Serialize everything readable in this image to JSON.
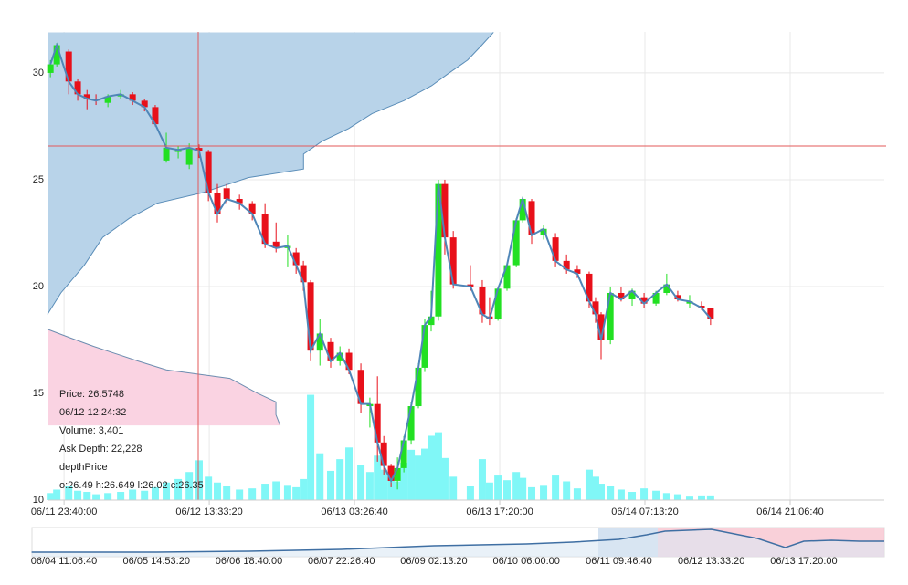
{
  "chart_data": {
    "type": "candlestick",
    "xlim": [
      -5.7,
      282.4
    ],
    "xticks": [
      {
        "value": 0,
        "label": "06/11 23:40:00"
      },
      {
        "value": 50,
        "label": "06/12 13:33:20"
      },
      {
        "value": 100,
        "label": "06/13 03:26:40"
      },
      {
        "value": 150,
        "label": "06/13 17:20:00"
      },
      {
        "value": 200,
        "label": "06/14 07:13:20"
      },
      {
        "value": 250,
        "label": "06/14 21:06:40"
      }
    ],
    "ylim": [
      10,
      31.92
    ],
    "yticks": [
      10,
      15,
      20,
      25,
      30
    ],
    "grid": true,
    "up_color": "#22e022",
    "down_color": "#e8101a",
    "line_color": "#4f86b8",
    "volume_color": "#80f7f7",
    "volume_lim": [
      0,
      40000
    ],
    "x": [
      -4.7,
      -2.5,
      1.6,
      4.7,
      7.9,
      11.0,
      15.1,
      19.5,
      23.6,
      27.7,
      31.4,
      35.2,
      39.3,
      43.1,
      46.5,
      49.7,
      52.8,
      56.0,
      60.4,
      64.8,
      69.2,
      73.0,
      77.0,
      79.9,
      82.4,
      84.9,
      88.1,
      91.8,
      95.0,
      98.1,
      102.2,
      105.3,
      107.9,
      110.1,
      112.6,
      114.8,
      117.0,
      119.5,
      122.0,
      124.2,
      126.4,
      128.9,
      131.1,
      134.0,
      139.9,
      144.0,
      146.5,
      149.4,
      152.5,
      155.7,
      157.9,
      161.0,
      165.1,
      169.2,
      173.0,
      176.7,
      180.8,
      183.0,
      184.9,
      188.1,
      191.8,
      195.6,
      199.7,
      203.8,
      207.5,
      211.3,
      215.4,
      219.5,
      222.6
    ],
    "ohlc": [
      [
        30.0,
        30.6,
        29.8,
        30.4
      ],
      [
        30.4,
        31.4,
        30.3,
        31.3
      ],
      [
        31.0,
        31.1,
        29.0,
        29.6
      ],
      [
        29.6,
        29.7,
        28.7,
        29.0
      ],
      [
        29.0,
        29.2,
        28.3,
        28.8
      ],
      [
        28.8,
        29.0,
        28.5,
        28.7
      ],
      [
        28.6,
        29.0,
        28.4,
        28.9
      ],
      [
        28.9,
        29.2,
        28.8,
        29.0
      ],
      [
        29.0,
        29.1,
        28.5,
        28.7
      ],
      [
        28.7,
        28.8,
        28.2,
        28.4
      ],
      [
        28.4,
        28.5,
        27.5,
        27.6
      ],
      [
        25.9,
        27.2,
        25.8,
        26.5
      ],
      [
        26.3,
        26.6,
        26.0,
        26.4
      ],
      [
        25.7,
        26.7,
        25.5,
        26.5
      ],
      [
        26.49,
        26.649,
        26.02,
        26.35
      ],
      [
        26.3,
        26.4,
        24.0,
        24.4
      ],
      [
        24.4,
        24.8,
        23.0,
        23.4
      ],
      [
        24.6,
        24.8,
        23.9,
        24.1
      ],
      [
        24.1,
        24.3,
        23.6,
        23.9
      ],
      [
        23.9,
        24.0,
        23.1,
        23.4
      ],
      [
        23.4,
        23.9,
        21.8,
        22.0
      ],
      [
        22.1,
        23.0,
        21.6,
        21.8
      ],
      [
        21.8,
        22.4,
        20.9,
        21.9
      ],
      [
        21.6,
        21.8,
        20.6,
        21.0
      ],
      [
        21.0,
        21.2,
        19.8,
        20.2
      ],
      [
        20.2,
        20.3,
        16.5,
        17.0
      ],
      [
        17.0,
        18.5,
        16.3,
        17.8
      ],
      [
        17.4,
        17.6,
        16.2,
        16.5
      ],
      [
        16.5,
        17.2,
        16.3,
        16.9
      ],
      [
        16.9,
        17.1,
        15.9,
        16.1
      ],
      [
        16.1,
        16.4,
        14.1,
        14.5
      ],
      [
        14.4,
        14.8,
        13.4,
        14.5
      ],
      [
        14.5,
        15.8,
        11.8,
        12.7
      ],
      [
        12.7,
        13.0,
        11.2,
        11.6
      ],
      [
        11.6,
        11.7,
        10.6,
        10.9
      ],
      [
        10.9,
        12.0,
        10.5,
        11.5
      ],
      [
        11.5,
        13.0,
        11.3,
        12.8
      ],
      [
        12.8,
        14.6,
        12.6,
        14.4
      ],
      [
        14.4,
        16.4,
        14.3,
        16.2
      ],
      [
        16.2,
        18.5,
        16.0,
        18.2
      ],
      [
        18.2,
        19.8,
        17.9,
        18.6
      ],
      [
        18.6,
        25.0,
        18.4,
        24.8
      ],
      [
        24.8,
        25.0,
        21.5,
        22.3
      ],
      [
        22.3,
        22.6,
        19.9,
        20.1
      ],
      [
        20.1,
        21.0,
        19.8,
        20.0
      ],
      [
        20.0,
        20.3,
        18.3,
        18.7
      ],
      [
        18.6,
        19.5,
        18.2,
        18.5
      ],
      [
        18.5,
        20.0,
        18.4,
        19.9
      ],
      [
        19.9,
        21.1,
        19.8,
        21.0
      ],
      [
        21.0,
        23.2,
        20.9,
        23.1
      ],
      [
        23.1,
        24.2,
        23.0,
        24.1
      ],
      [
        24.0,
        24.1,
        22.0,
        22.4
      ],
      [
        22.4,
        22.9,
        22.2,
        22.7
      ],
      [
        22.3,
        22.5,
        20.9,
        21.2
      ],
      [
        21.2,
        21.5,
        20.6,
        20.8
      ],
      [
        20.8,
        21.0,
        20.4,
        20.6
      ],
      [
        20.6,
        20.7,
        19.0,
        19.3
      ],
      [
        19.3,
        19.5,
        18.3,
        18.7
      ],
      [
        18.7,
        18.8,
        16.6,
        17.5
      ],
      [
        17.5,
        20.0,
        17.3,
        19.7
      ],
      [
        19.7,
        20.0,
        19.3,
        19.4
      ],
      [
        19.4,
        19.9,
        19.1,
        19.8
      ],
      [
        19.5,
        19.7,
        19.0,
        19.2
      ],
      [
        19.2,
        19.8,
        19.1,
        19.7
      ],
      [
        19.7,
        20.6,
        19.6,
        20.1
      ],
      [
        19.6,
        19.8,
        19.3,
        19.4
      ],
      [
        19.2,
        19.6,
        19.0,
        19.3
      ],
      [
        19.1,
        19.3,
        18.9,
        19.0
      ],
      [
        19.0,
        19.0,
        18.2,
        18.5
      ]
    ],
    "volume": [
      600,
      900,
      1200,
      800,
      700,
      500,
      600,
      700,
      900,
      800,
      1100,
      1500,
      1800,
      2400,
      3401,
      2000,
      1500,
      1200,
      900,
      1000,
      1400,
      1600,
      1300,
      1100,
      1800,
      9000,
      4000,
      2500,
      3500,
      4500,
      3000,
      2400,
      3800,
      2600,
      2000,
      1600,
      3200,
      4300,
      3800,
      4400,
      5500,
      5800,
      3600,
      2000,
      1200,
      3500,
      1500,
      2100,
      1700,
      2400,
      1900,
      1100,
      1300,
      2100,
      1600,
      1000,
      2600,
      2000,
      1400,
      1200,
      900,
      700,
      1000,
      800,
      600,
      500,
      300,
      400,
      400
    ],
    "depth_lim": [
      0,
      100000
    ],
    "bid_depth": {
      "color": "#b8d3e9",
      "prices": [
        31.9,
        31.3,
        30.6,
        30.0,
        29.4,
        28.7,
        28.1,
        27.4,
        26.8,
        26.2,
        25.5,
        25.1,
        24.4,
        23.9,
        23.2,
        22.3,
        21.0,
        19.7,
        18.7
      ],
      "depths": [
        53300,
        51900,
        50200,
        48000,
        45900,
        42600,
        38800,
        36000,
        32800,
        30600,
        30600,
        24000,
        18600,
        13100,
        9800,
        6600,
        4400,
        1600,
        0
      ]
    },
    "ask_depth": {
      "color": "#fad3e2",
      "prices": [
        18.0,
        17.6,
        17.2,
        16.5,
        16.1,
        15.7,
        15.0,
        14.6,
        14.0,
        13.5
      ],
      "depths": [
        0,
        2700,
        5500,
        10900,
        14200,
        21800,
        25100,
        27300,
        27300,
        27800
      ]
    },
    "tooltip": [
      "Price: 26.5748",
      "06/12 12:24:32",
      "Volume: 3,401",
      "Ask Depth: 22,228",
      "depthPrice",
      "o:26.49 h:26.649 l:26.02 c:26.35"
    ],
    "navigator": {
      "xlim": [
        -0.346,
        8.87
      ],
      "ylim": [
        0,
        32
      ],
      "xticks": [
        {
          "value": 0,
          "label": "06/04 11:06:40"
        },
        {
          "value": 1,
          "label": "06/05 14:53:20"
        },
        {
          "value": 2,
          "label": "06/06 18:40:00"
        },
        {
          "value": 3,
          "label": "06/07 22:26:40"
        },
        {
          "value": 4,
          "label": "06/09 02:13:20"
        },
        {
          "value": 5,
          "label": "06/10 06:00:00"
        },
        {
          "value": 6,
          "label": "06/11 09:46:40"
        },
        {
          "value": 7,
          "label": "06/12 13:33:20"
        },
        {
          "value": 8,
          "label": "06/13 17:20:00"
        }
      ],
      "x": [
        -0.35,
        0,
        1,
        2,
        3,
        3.5,
        4,
        4.5,
        5,
        5.5,
        6,
        6.3,
        6.5,
        7,
        7.3,
        7.5,
        7.8,
        8,
        8.3,
        8.6,
        8.87
      ],
      "values": [
        5,
        5,
        5,
        6,
        8,
        10,
        12,
        13,
        14,
        16,
        19,
        24,
        28,
        30,
        24,
        20,
        10,
        17,
        18,
        17,
        17
      ]
    }
  }
}
